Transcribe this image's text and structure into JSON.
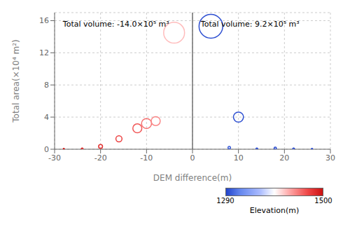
{
  "chart_data": {
    "type": "scatter",
    "annotations": [
      "Total volume: -14.0×10⁵ m³",
      "Total volume: 9.2×10⁵ m³"
    ],
    "xlabel": "DEM difference(m)",
    "ylabel": "Total area(×10⁴ m²)",
    "x": [
      -28,
      -24,
      -20,
      -16,
      -12,
      -10,
      -8,
      -4,
      4,
      8,
      10,
      14,
      18,
      22,
      26
    ],
    "values": [
      0.05,
      0.05,
      0.35,
      1.3,
      2.6,
      3.2,
      3.5,
      14.5,
      15.3,
      0.2,
      4.0,
      0.05,
      0.12,
      0.05,
      0.03
    ],
    "size": [
      2,
      5,
      25,
      60,
      130,
      160,
      130,
      700,
      900,
      10,
      160,
      5,
      8,
      5,
      3
    ],
    "elevation": [
      1500,
      1490,
      1480,
      1470,
      1460,
      1450,
      1440,
      1420,
      1295,
      1300,
      1295,
      1292,
      1291,
      1291,
      1290
    ],
    "xlim": [
      -30,
      30
    ],
    "ylim": [
      0,
      17
    ],
    "xticks": [
      -30,
      -20,
      -10,
      0,
      10,
      20,
      30
    ],
    "yticks": [
      0,
      4,
      8,
      12,
      16
    ],
    "grid": true,
    "vline": {
      "x": 0,
      "color": "#707070"
    },
    "colormap": [
      "#2244cc",
      "#6688ee",
      "#aabbff",
      "#ffffff",
      "#ffaaaa",
      "#ee4444",
      "#cc1111"
    ],
    "colorbar": {
      "label": "Elevation(m)",
      "lim": [
        1290,
        1500
      ],
      "ticks": [
        1290,
        1500
      ]
    }
  }
}
